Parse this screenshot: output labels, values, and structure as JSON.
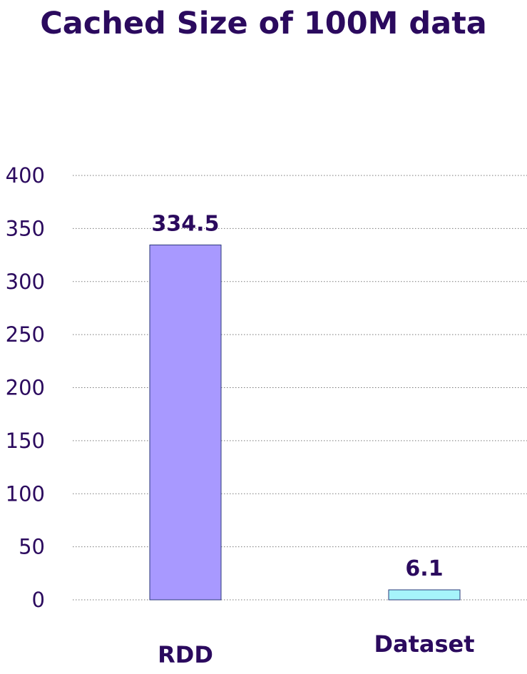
{
  "chart_data": {
    "type": "bar",
    "title": "Cached Size of 100M data",
    "xlabel": "",
    "ylabel": "",
    "categories": [
      "RDD",
      "Dataset"
    ],
    "values": [
      334.5,
      6.1
    ],
    "data_labels": [
      "334.5",
      "6.1"
    ],
    "bar_colors": [
      "#a899ff",
      "#a6f4fa"
    ],
    "ylim": [
      0,
      400
    ],
    "yticks": [
      0,
      50,
      100,
      150,
      200,
      250,
      300,
      350,
      400
    ],
    "grid": true,
    "grid_style": "dotted",
    "legend": "none"
  }
}
